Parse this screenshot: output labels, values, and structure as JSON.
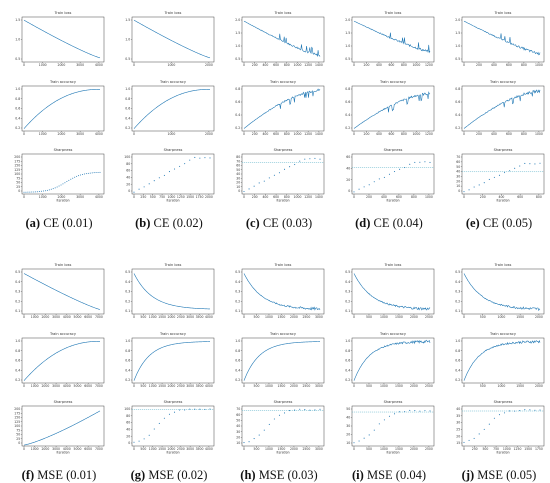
{
  "chart_data": [
    {
      "type": "line",
      "group": "CE",
      "lr": "0.01",
      "rows": [
        {
          "title": "Train loss",
          "x": [
            0,
            1000,
            2000,
            3000,
            4000
          ],
          "xticks": [
            "0",
            "1000",
            "2000",
            "3000",
            "4000"
          ],
          "yticks": [
            "1.5",
            "1.0",
            "0.5"
          ],
          "ylim": [
            0.05,
            2.2
          ],
          "y_start": 2.05,
          "y_end": 0.25,
          "shape": "smooth"
        },
        {
          "title": "Train accuracy",
          "xticks": [
            "0",
            "1000",
            "2000",
            "3000",
            "4000"
          ],
          "yticks": [
            "1.0",
            "0.8",
            "0.6",
            "0.4",
            "0.2"
          ],
          "ylim": [
            0.1,
            1.05
          ],
          "y_start": 0.15,
          "y_end": 0.98,
          "shape": "concave"
        },
        {
          "title": "Sharpness",
          "xlabel": "Iteration",
          "xticks": [
            "0",
            "1000",
            "2000",
            "3000",
            "4000"
          ],
          "yticks": [
            "200",
            "175",
            "150",
            "125",
            "100",
            "75",
            "50",
            "25",
            "0"
          ],
          "ylim": [
            0,
            200
          ],
          "y_start": 8,
          "y_end": 110,
          "shape": "sigmoid"
        }
      ]
    },
    {
      "type": "line",
      "group": "CE",
      "lr": "0.02",
      "rows": [
        {
          "title": "Train loss",
          "xticks": [
            "0",
            "1000",
            "2000"
          ],
          "yticks": [
            "1.5",
            "1.0",
            "0.5"
          ],
          "ylim": [
            0.05,
            2.2
          ],
          "y_start": 2.05,
          "y_end": 0.25,
          "shape": "smooth"
        },
        {
          "title": "Train accuracy",
          "xticks": [
            "0",
            "1000",
            "2000"
          ],
          "yticks": [
            "1.0",
            "0.8",
            "0.6",
            "0.4",
            "0.2"
          ],
          "ylim": [
            0.1,
            1.05
          ],
          "y_start": 0.15,
          "y_end": 0.98,
          "shape": "concave"
        },
        {
          "title": "Sharpness",
          "xlabel": "Iteration",
          "xticks": [
            "0",
            "250",
            "500",
            "750",
            "1000",
            "1250",
            "1500",
            "1750",
            "2000"
          ],
          "yticks": [
            "100",
            "80",
            "60",
            "40",
            "20",
            "0"
          ],
          "ylim": [
            0,
            110
          ],
          "y_start": 5,
          "y_end": 100,
          "shape": "dots",
          "plateau": 100
        }
      ]
    },
    {
      "type": "line",
      "group": "CE",
      "lr": "0.03",
      "rows": [
        {
          "title": "Train loss",
          "xticks": [
            "0",
            "200",
            "400",
            "600",
            "800",
            "1000",
            "1200",
            "1400"
          ],
          "yticks": [
            "2.0",
            "1.5",
            "1.0",
            "0.5"
          ],
          "ylim": [
            0.1,
            2.3
          ],
          "y_start": 2.1,
          "y_end": 0.4,
          "shape": "spiky"
        },
        {
          "title": "Train accuracy",
          "xticks": [
            "0",
            "200",
            "400",
            "600",
            "800",
            "1000",
            "1200",
            "1400"
          ],
          "yticks": [
            "0.8",
            "0.6",
            "0.4",
            "0.2"
          ],
          "ylim": [
            0.1,
            1.0
          ],
          "y_start": 0.15,
          "y_end": 0.92,
          "shape": "spiky-up"
        },
        {
          "title": "Sharpness",
          "xlabel": "Iteration",
          "xticks": [
            "0",
            "200",
            "400",
            "600",
            "800",
            "1000",
            "1200",
            "1400"
          ],
          "yticks": [
            "80",
            "70",
            "60",
            "50",
            "40",
            "30",
            "20",
            "10",
            "0"
          ],
          "ylim": [
            0,
            85
          ],
          "threshold": 66.7,
          "y_start": 5,
          "y_end": 75,
          "shape": "dots",
          "plateau": 75
        }
      ]
    },
    {
      "type": "line",
      "group": "CE",
      "lr": "0.04",
      "rows": [
        {
          "title": "Train loss",
          "xticks": [
            "0",
            "200",
            "400",
            "600",
            "800",
            "1000",
            "1200"
          ],
          "yticks": [
            "2.0",
            "1.5",
            "1.0",
            "0.5"
          ],
          "ylim": [
            0.1,
            2.3
          ],
          "y_start": 2.1,
          "y_end": 0.6,
          "shape": "spiky"
        },
        {
          "title": "Train accuracy",
          "xticks": [
            "0",
            "200",
            "400",
            "600",
            "800",
            "1000",
            "1200"
          ],
          "yticks": [
            "0.8",
            "0.6",
            "0.4",
            "0.2"
          ],
          "ylim": [
            0.1,
            1.0
          ],
          "y_start": 0.15,
          "y_end": 0.85,
          "shape": "spiky-up"
        },
        {
          "title": "Sharpness",
          "xlabel": "Iteration",
          "xticks": [
            "0",
            "200",
            "400",
            "600",
            "800",
            "1000"
          ],
          "yticks": [
            "60",
            "40",
            "20",
            "0"
          ],
          "ylim": [
            0,
            75
          ],
          "threshold": 50,
          "y_start": 4,
          "y_end": 70,
          "shape": "dots",
          "plateau": 60
        }
      ]
    },
    {
      "type": "line",
      "group": "CE",
      "lr": "0.05",
      "rows": [
        {
          "title": "Train loss",
          "xticks": [
            "0",
            "200",
            "400",
            "600",
            "800",
            "1000"
          ],
          "yticks": [
            "2.0",
            "1.5",
            "1.0",
            "0.5"
          ],
          "ylim": [
            0.1,
            2.3
          ],
          "y_start": 2.1,
          "y_end": 0.5,
          "shape": "spiky"
        },
        {
          "title": "Train accuracy",
          "xticks": [
            "0",
            "200",
            "400",
            "600",
            "800",
            "1000"
          ],
          "yticks": [
            "0.8",
            "0.6",
            "0.4",
            "0.2"
          ],
          "ylim": [
            0.1,
            1.0
          ],
          "y_start": 0.15,
          "y_end": 0.9,
          "shape": "spiky-up"
        },
        {
          "title": "Sharpness",
          "xlabel": "Iteration",
          "xticks": [
            "0",
            "200",
            "400",
            "600",
            "800"
          ],
          "yticks": [
            "70",
            "60",
            "50",
            "40",
            "30",
            "20",
            "10",
            "0"
          ],
          "ylim": [
            0,
            72
          ],
          "threshold": 40,
          "y_start": 4,
          "y_end": 60,
          "shape": "dots",
          "plateau": 55
        }
      ]
    },
    {
      "type": "line",
      "group": "MSE",
      "lr": "0.01",
      "rows": [
        {
          "title": "Train loss",
          "xticks": [
            "0",
            "1000",
            "2000",
            "3000",
            "4000",
            "5000",
            "6000",
            "7000"
          ],
          "yticks": [
            "0.5",
            "0.4",
            "0.3",
            "0.2",
            "0.1"
          ],
          "ylim": [
            0.05,
            0.55
          ],
          "y_start": 0.5,
          "y_end": 0.1,
          "shape": "smooth"
        },
        {
          "title": "Train accuracy",
          "xticks": [
            "0",
            "1000",
            "2000",
            "3000",
            "4000",
            "5000",
            "6000",
            "7000"
          ],
          "yticks": [
            "1.0",
            "0.8",
            "0.6",
            "0.4",
            "0.2"
          ],
          "ylim": [
            0.1,
            1.05
          ],
          "y_start": 0.15,
          "y_end": 0.98,
          "shape": "concave"
        },
        {
          "title": "Sharpness",
          "xlabel": "Iteration",
          "xticks": [
            "0",
            "1000",
            "2000",
            "3000",
            "4000",
            "5000",
            "6000",
            "7000"
          ],
          "yticks": [
            "200",
            "175",
            "150",
            "125",
            "100",
            "75",
            "50",
            "25",
            "0"
          ],
          "ylim": [
            0,
            205
          ],
          "y_start": 5,
          "y_end": 180,
          "shape": "rising"
        }
      ]
    },
    {
      "type": "line",
      "group": "MSE",
      "lr": "0.02",
      "rows": [
        {
          "title": "Train loss",
          "xticks": [
            "0",
            "500",
            "1000",
            "1500",
            "2000",
            "2500",
            "3000",
            "3500",
            "4000"
          ],
          "yticks": [
            "0.5",
            "0.4",
            "0.3",
            "0.2",
            "0.1"
          ],
          "ylim": [
            0.05,
            0.55
          ],
          "y_start": 0.5,
          "y_end": 0.1,
          "shape": "fast"
        },
        {
          "title": "Train accuracy",
          "xticks": [
            "0",
            "500",
            "1000",
            "1500",
            "2000",
            "2500",
            "3000",
            "3500",
            "4000"
          ],
          "yticks": [
            "1.0",
            "0.8",
            "0.6",
            "0.4",
            "0.2"
          ],
          "ylim": [
            0.1,
            1.05
          ],
          "y_start": 0.15,
          "y_end": 0.98,
          "shape": "fast-up"
        },
        {
          "title": "Sharpness",
          "xlabel": "Iteration",
          "xticks": [
            "0",
            "500",
            "1000",
            "1500",
            "2000",
            "2500",
            "3000",
            "3500",
            "4000"
          ],
          "yticks": [
            "100",
            "80",
            "60",
            "40",
            "20",
            "0"
          ],
          "ylim": [
            0,
            110
          ],
          "threshold": 100,
          "y_start": 5,
          "y_end": 100,
          "shape": "dots-sig",
          "plateau": 102
        }
      ]
    },
    {
      "type": "line",
      "group": "MSE",
      "lr": "0.03",
      "rows": [
        {
          "title": "Train loss",
          "xticks": [
            "0",
            "500",
            "1000",
            "1500",
            "2000",
            "2500",
            "3000"
          ],
          "yticks": [
            "0.5",
            "0.4",
            "0.3",
            "0.2",
            "0.1"
          ],
          "ylim": [
            0.05,
            0.55
          ],
          "y_start": 0.5,
          "y_end": 0.1,
          "shape": "fast-noisy"
        },
        {
          "title": "Train accuracy",
          "xticks": [
            "0",
            "500",
            "1000",
            "1500",
            "2000",
            "2500",
            "3000"
          ],
          "yticks": [
            "1.0",
            "0.8",
            "0.6",
            "0.4",
            "0.2"
          ],
          "ylim": [
            0.1,
            1.05
          ],
          "y_start": 0.15,
          "y_end": 0.98,
          "shape": "fast-up"
        },
        {
          "title": "Sharpness",
          "xlabel": "Iteration",
          "xticks": [
            "0",
            "500",
            "1000",
            "1500",
            "2000",
            "2500",
            "3000"
          ],
          "yticks": [
            "70",
            "60",
            "50",
            "40",
            "30",
            "20",
            "10"
          ],
          "ylim": [
            5,
            75
          ],
          "threshold": 66.7,
          "y_start": 8,
          "y_end": 68,
          "shape": "dots-sig",
          "plateau": 69
        }
      ]
    },
    {
      "type": "line",
      "group": "MSE",
      "lr": "0.04",
      "rows": [
        {
          "title": "Train loss",
          "xticks": [
            "0",
            "500",
            "1000",
            "1500",
            "2000",
            "2500"
          ],
          "yticks": [
            "0.5",
            "0.4",
            "0.3",
            "0.2",
            "0.1"
          ],
          "ylim": [
            0.05,
            0.55
          ],
          "y_start": 0.5,
          "y_end": 0.1,
          "shape": "fast-noisy"
        },
        {
          "title": "Train accuracy",
          "xticks": [
            "0",
            "500",
            "1000",
            "1500",
            "2000",
            "2500"
          ],
          "yticks": [
            "1.0",
            "0.8",
            "0.6",
            "0.4",
            "0.2"
          ],
          "ylim": [
            0.1,
            1.05
          ],
          "y_start": 0.15,
          "y_end": 0.98,
          "shape": "fast-up-noisy"
        },
        {
          "title": "Sharpness",
          "xlabel": "Iteration",
          "xticks": [
            "0",
            "500",
            "1000",
            "1500",
            "2000",
            "2500"
          ],
          "yticks": [
            "50",
            "40",
            "30",
            "20",
            "10"
          ],
          "ylim": [
            5,
            58
          ],
          "threshold": 50,
          "y_start": 8,
          "y_end": 52,
          "shape": "dots-sig",
          "plateau": 52
        }
      ]
    },
    {
      "type": "line",
      "group": "MSE",
      "lr": "0.05",
      "rows": [
        {
          "title": "Train loss",
          "xticks": [
            "0",
            "500",
            "1000",
            "1500",
            "2000"
          ],
          "yticks": [
            "0.5",
            "0.4",
            "0.3",
            "0.2",
            "0.1"
          ],
          "ylim": [
            0.05,
            0.55
          ],
          "y_start": 0.5,
          "y_end": 0.1,
          "shape": "fast-noisy"
        },
        {
          "title": "Train accuracy",
          "xticks": [
            "0",
            "500",
            "1000",
            "1500",
            "2000"
          ],
          "yticks": [
            "1.0",
            "0.8",
            "0.6",
            "0.4",
            "0.2"
          ],
          "ylim": [
            0.1,
            1.05
          ],
          "y_start": 0.15,
          "y_end": 0.98,
          "shape": "fast-up-noisy"
        },
        {
          "title": "Sharpness",
          "xlabel": "Iteration",
          "xticks": [
            "0",
            "250",
            "500",
            "750",
            "1000",
            "1250",
            "1500",
            "1750"
          ],
          "yticks": [
            "40",
            "35",
            "30",
            "25",
            "20",
            "15"
          ],
          "ylim": [
            12,
            44
          ],
          "threshold": 40,
          "y_start": 14,
          "y_end": 41,
          "shape": "dots-sig",
          "plateau": 41
        }
      ]
    }
  ],
  "captions": [
    {
      "letter": "(a)",
      "text": "CE (0.01)"
    },
    {
      "letter": "(b)",
      "text": "CE (0.02)"
    },
    {
      "letter": "(c)",
      "text": "CE (0.03)"
    },
    {
      "letter": "(d)",
      "text": "CE (0.04)"
    },
    {
      "letter": "(e)",
      "text": "CE (0.05)"
    },
    {
      "letter": "(f)",
      "text": "MSE (0.01)"
    },
    {
      "letter": "(g)",
      "text": "MSE (0.02)"
    },
    {
      "letter": "(h)",
      "text": "MSE (0.03)"
    },
    {
      "letter": "(i)",
      "text": "MSE (0.04)"
    },
    {
      "letter": "(j)",
      "text": "MSE (0.05)"
    }
  ],
  "colors": {
    "line": "#1f77b4",
    "threshold": "#5fb3c9",
    "axis": "#333333"
  }
}
